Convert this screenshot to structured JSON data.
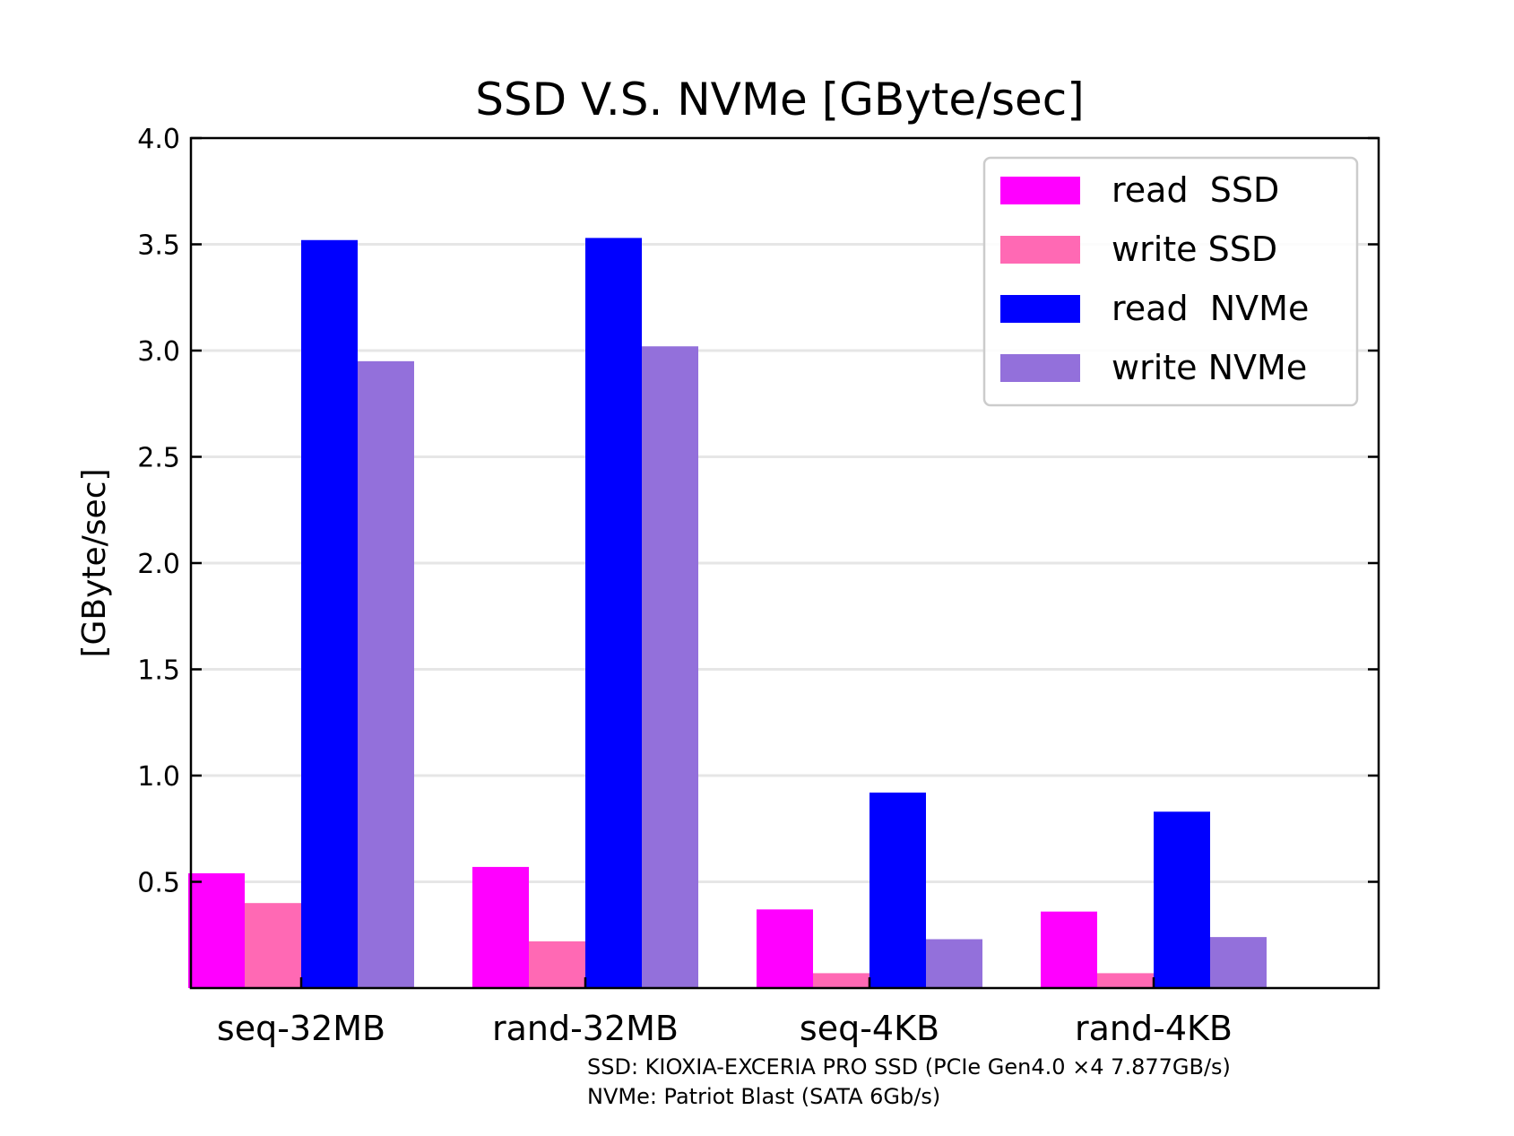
{
  "chart_data": {
    "type": "bar",
    "title": "SSD V.S. NVMe [GByte/sec]",
    "xlabel": "",
    "ylabel": "[GByte/sec]",
    "ylim": [
      0,
      4.0
    ],
    "yticks": [
      "0.5",
      "1.0",
      "1.5",
      "2.0",
      "2.5",
      "3.0",
      "3.5",
      "4.0"
    ],
    "categories": [
      "seq-32MB",
      "rand-32MB",
      "seq-4KB",
      "rand-4KB"
    ],
    "series": [
      {
        "name": "read  SSD",
        "color": "#ff00ff",
        "values": [
          0.54,
          0.57,
          0.37,
          0.36
        ]
      },
      {
        "name": "write SSD",
        "color": "#ff69b4",
        "values": [
          0.4,
          0.22,
          0.07,
          0.07
        ]
      },
      {
        "name": "read  NVMe",
        "color": "#0000ff",
        "values": [
          3.52,
          3.53,
          0.92,
          0.83
        ]
      },
      {
        "name": "write NVMe",
        "color": "#9370db",
        "values": [
          2.95,
          3.02,
          0.23,
          0.24
        ]
      }
    ],
    "grid": "horizontal",
    "legend": "top-right",
    "annotations": [
      "SSD: KIOXIA-EXCERIA PRO SSD (PCIe Gen4.0 ×4 7.877GB/s)",
      "NVMe: Patriot Blast (SATA 6Gb/s)"
    ]
  }
}
